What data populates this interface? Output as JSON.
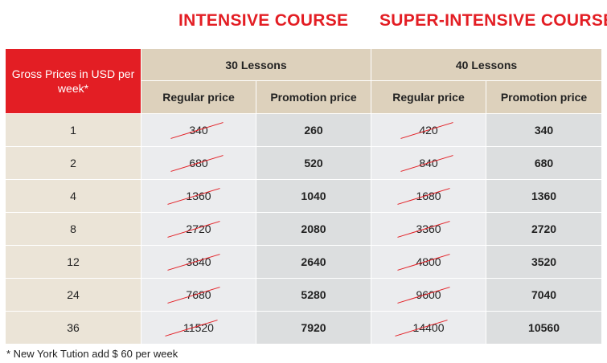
{
  "titles": {
    "intensive": "INTENSIVE COURSE",
    "super_intensive": "SUPER-INTENSIVE COURSE"
  },
  "table": {
    "corner_label": "Gross Prices in USD per week*",
    "groups": [
      "30 Lessons",
      "40 Lessons"
    ],
    "sub_headers": [
      "Regular price",
      "Promotion price",
      "Regular price",
      "Promotion price"
    ],
    "rows": [
      {
        "weeks": "1",
        "reg30": "340",
        "promo30": "260",
        "reg40": "420",
        "promo40": "340"
      },
      {
        "weeks": "2",
        "reg30": "680",
        "promo30": "520",
        "reg40": "840",
        "promo40": "680"
      },
      {
        "weeks": "4",
        "reg30": "1360",
        "promo30": "1040",
        "reg40": "1680",
        "promo40": "1360"
      },
      {
        "weeks": "8",
        "reg30": "2720",
        "promo30": "2080",
        "reg40": "3360",
        "promo40": "2720"
      },
      {
        "weeks": "12",
        "reg30": "3840",
        "promo30": "2640",
        "reg40": "4800",
        "promo40": "3520"
      },
      {
        "weeks": "24",
        "reg30": "7680",
        "promo30": "5280",
        "reg40": "9600",
        "promo40": "7040"
      },
      {
        "weeks": "36",
        "reg30": "11520",
        "promo30": "7920",
        "reg40": "14400",
        "promo40": "10560"
      }
    ]
  },
  "footnote": "* New York Tution add $ 60 per week",
  "colors": {
    "accent_red": "#e31e24",
    "header_beige": "#ddd1bc",
    "weeks_beige": "#ebe4d7",
    "regular_gray": "#ebecee",
    "promo_gray": "#dcdedf"
  }
}
